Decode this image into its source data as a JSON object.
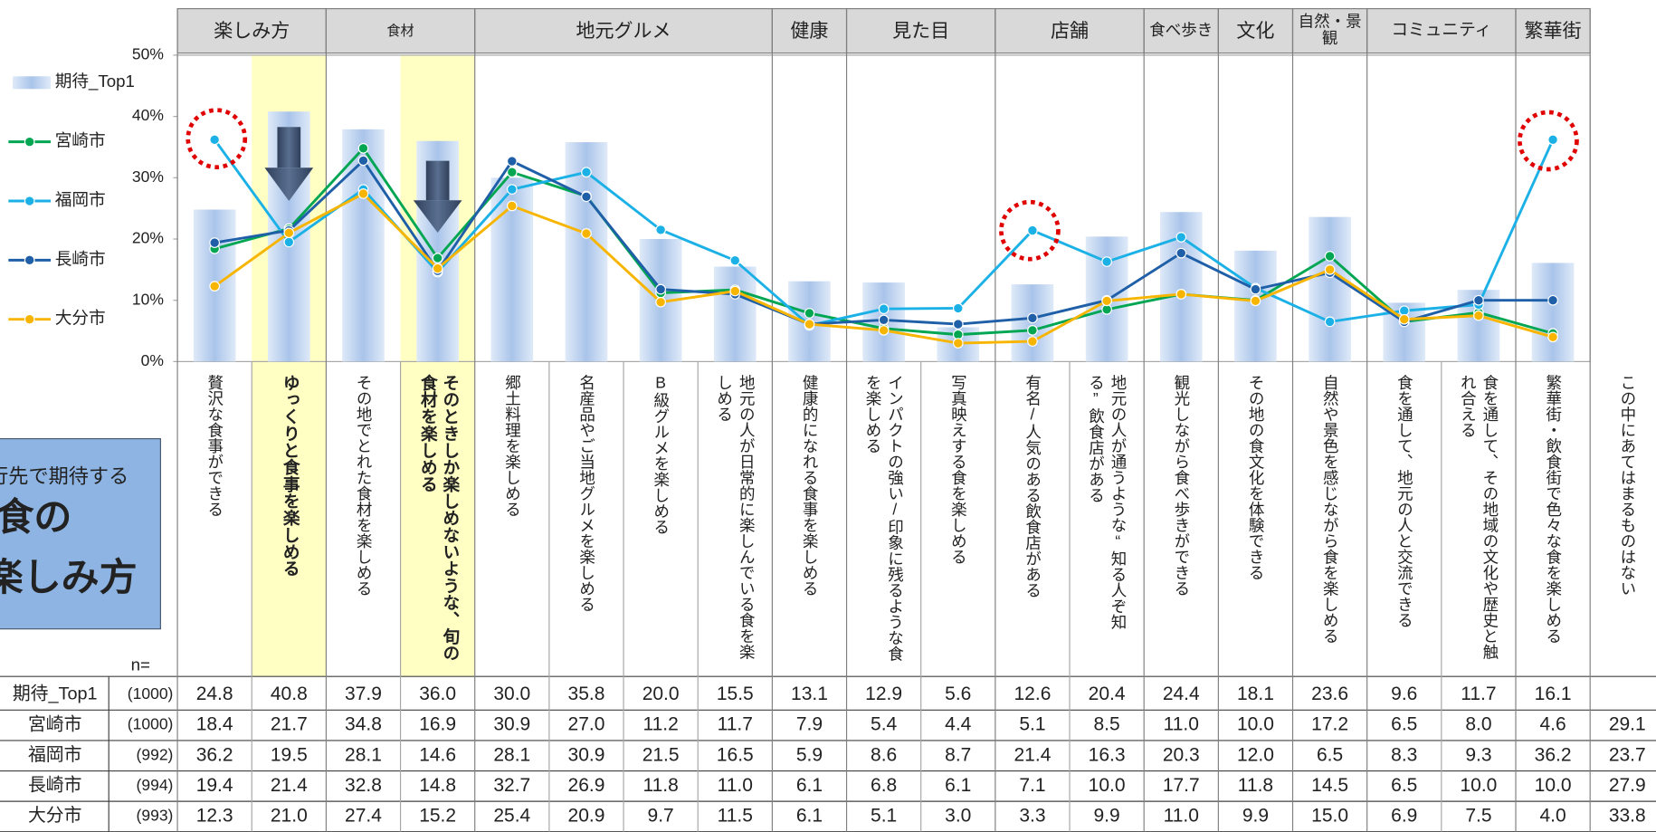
{
  "column_groups": [
    "楽しみ方",
    "食材",
    "地元グルメ",
    "健康",
    "見た目",
    "店舗",
    "食べ歩き",
    "文化",
    "自然・景観",
    "コミュニティ",
    "繁華街"
  ],
  "title_box": {
    "lines": [
      "旅行先で期待する",
      "食の",
      "楽しみ方"
    ]
  },
  "n_label": "n=",
  "chart_data": {
    "type": "combo",
    "categories": [
      "贅沢な食事ができる",
      "ゆっくりと食事を楽しめる",
      "その地でとれた食材を楽しめる",
      "そのときしか楽しめないような、旬の食材を楽しめる",
      "郷土料理を楽しめる",
      "名産品やご当地グルメを楽しめる",
      "B級グルメを楽しめる",
      "地元の人が日常的に楽しんでいる食を楽しめる",
      "健康的になれる食事を楽しめる",
      "インパクトの強い/印象に残るような食を楽しめる",
      "写真映えする食を楽しめる",
      "有名/人気のある飲食店がある",
      "地元の人が通うような“知る人ぞ知る”飲食店がある",
      "観光しながら食べ歩きができる",
      "その地の食文化を体験できる",
      "自然や景色を感じながら食を楽しめる",
      "食を通して、地元の人と交流できる",
      "食を通して、その地域の文化や歴史と触れ合える",
      "繁華街・飲食街で色々な食を楽しめる",
      "この中にあてはまるものはない"
    ],
    "ylim": [
      0,
      50
    ],
    "yticks": [
      {
        "value": 0,
        "label": "0%"
      },
      {
        "value": 10,
        "label": "10%"
      },
      {
        "value": 20,
        "label": "20%"
      },
      {
        "value": 30,
        "label": "30%"
      },
      {
        "value": 40,
        "label": "40%"
      },
      {
        "value": 50,
        "label": "50%"
      }
    ],
    "series": [
      {
        "name": "期待_Top1",
        "type": "bar",
        "color": "#a9c4ea",
        "n": "(1000)",
        "values": [
          24.8,
          40.8,
          37.9,
          36.0,
          30.0,
          35.8,
          20.0,
          15.5,
          13.1,
          12.9,
          5.6,
          12.6,
          20.4,
          24.4,
          18.1,
          23.6,
          9.6,
          11.7,
          16.1,
          null
        ],
        "value_labels": [
          "24.8",
          "40.8",
          "37.9",
          "36.0",
          "30.0",
          "35.8",
          "20.0",
          "15.5",
          "13.1",
          "12.9",
          "5.6",
          "12.6",
          "20.4",
          "24.4",
          "18.1",
          "23.6",
          "9.6",
          "11.7",
          "16.1",
          null
        ]
      },
      {
        "name": "宮崎市",
        "type": "line",
        "color": "#00a651",
        "n": "(1000)",
        "values": [
          18.4,
          21.7,
          34.8,
          16.9,
          30.9,
          27.0,
          11.2,
          11.7,
          7.9,
          5.4,
          4.4,
          5.1,
          8.5,
          11.0,
          10.0,
          17.2,
          6.5,
          8.0,
          4.6,
          29.1
        ],
        "value_labels": [
          "18.4",
          "21.7",
          "34.8",
          "16.9",
          "30.9",
          "27.0",
          "11.2",
          "11.7",
          "7.9",
          "5.4",
          "4.4",
          "5.1",
          "8.5",
          "11.0",
          "10.0",
          "17.2",
          "6.5",
          "8.0",
          "4.6",
          "29.1"
        ]
      },
      {
        "name": "福岡市",
        "type": "line",
        "color": "#1cb1e6",
        "n": "(992)",
        "values": [
          36.2,
          19.5,
          28.1,
          14.6,
          28.1,
          30.9,
          21.5,
          16.5,
          5.9,
          8.6,
          8.7,
          21.4,
          16.3,
          20.3,
          12.0,
          6.5,
          8.3,
          9.3,
          36.2,
          23.7
        ],
        "value_labels": [
          "36.2",
          "19.5",
          "28.1",
          "14.6",
          "28.1",
          "30.9",
          "21.5",
          "16.5",
          "5.9",
          "8.6",
          "8.7",
          "21.4",
          "16.3",
          "20.3",
          "12.0",
          "6.5",
          "8.3",
          "9.3",
          "36.2",
          "23.7"
        ]
      },
      {
        "name": "長崎市",
        "type": "line",
        "color": "#1f5fa8",
        "n": "(994)",
        "values": [
          19.4,
          21.4,
          32.8,
          14.8,
          32.7,
          26.9,
          11.8,
          11.0,
          6.1,
          6.8,
          6.1,
          7.1,
          10.0,
          17.7,
          11.8,
          14.5,
          6.5,
          10.0,
          10.0,
          27.9
        ],
        "value_labels": [
          "19.4",
          "21.4",
          "32.8",
          "14.8",
          "32.7",
          "26.9",
          "11.8",
          "11.0",
          "6.1",
          "6.8",
          "6.1",
          "7.1",
          "10.0",
          "17.7",
          "11.8",
          "14.5",
          "6.5",
          "10.0",
          "10.0",
          "27.9"
        ]
      },
      {
        "name": "大分市",
        "type": "line",
        "color": "#f7b500",
        "n": "(993)",
        "values": [
          12.3,
          21.0,
          27.4,
          15.2,
          25.4,
          20.9,
          9.7,
          11.5,
          6.1,
          5.1,
          3.0,
          3.3,
          9.9,
          11.0,
          9.9,
          15.0,
          6.9,
          7.5,
          4.0,
          33.8
        ],
        "value_labels": [
          "12.3",
          "21.0",
          "27.4",
          "15.2",
          "25.4",
          "20.9",
          "9.7",
          "11.5",
          "6.1",
          "5.1",
          "3.0",
          "3.3",
          "9.9",
          "11.0",
          "9.9",
          "15.0",
          "6.9",
          "7.5",
          "4.0",
          "33.8"
        ]
      }
    ]
  }
}
